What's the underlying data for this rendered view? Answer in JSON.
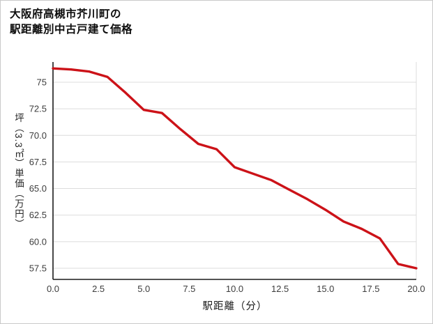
{
  "chart": {
    "title_line1": "大阪府高槻市芥川町の",
    "title_line2": "駅距離別中古戸建て価格",
    "xlabel": "駅距離（分）",
    "ylabel": "坪（3.3㎡）単価（万円）",
    "line_color": "#cc1218",
    "grid_color": "#dcdcdc",
    "axis_color": "#1a1a1a",
    "tick_color": "#3c3c3c"
  },
  "chart_data": {
    "type": "line",
    "title": "大阪府高槻市芥川町の駅距離別中古戸建て価格",
    "xlabel": "駅距離（分）",
    "ylabel": "坪（3.3㎡）単価（万円）",
    "x": [
      0,
      1,
      2,
      3,
      4,
      5,
      6,
      7,
      8,
      9,
      10,
      11,
      12,
      13,
      14,
      15,
      16,
      17,
      18,
      19,
      20
    ],
    "y": [
      76.3,
      76.2,
      76.0,
      75.5,
      74.0,
      72.4,
      72.1,
      70.6,
      69.2,
      68.7,
      67.0,
      66.4,
      65.8,
      64.9,
      64.0,
      63.0,
      61.9,
      61.2,
      60.3,
      57.9,
      57.5
    ],
    "x_ticks": [
      0.0,
      2.5,
      5.0,
      7.5,
      10.0,
      12.5,
      15.0,
      17.5,
      20.0
    ],
    "x_tick_labels": [
      "0.0",
      "2.5",
      "5.0",
      "7.5",
      "10.0",
      "12.5",
      "15.0",
      "17.5",
      "20.0"
    ],
    "y_ticks": [
      57.5,
      60.0,
      62.5,
      65.0,
      67.5,
      70.0,
      72.5,
      75.0
    ],
    "y_tick_labels": [
      "57.5",
      "60.0",
      "62.5",
      "65.0",
      "67.5",
      "70.0",
      "72.5",
      "75"
    ],
    "xlim": [
      0,
      20
    ],
    "ylim": [
      56.45,
      76.9
    ],
    "grid": "horizontal",
    "legend": "none"
  }
}
